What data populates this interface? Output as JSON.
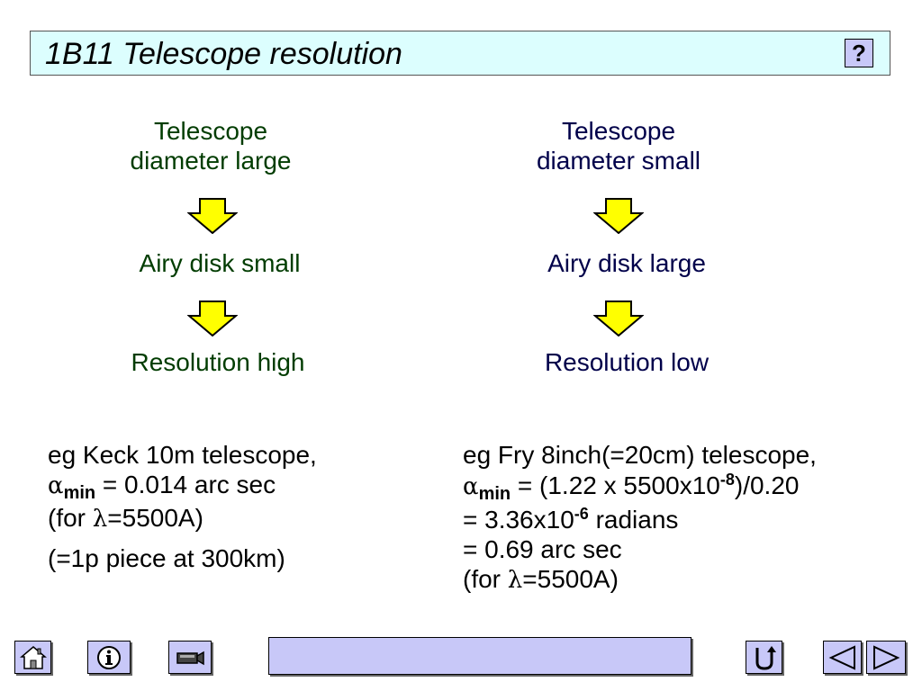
{
  "title": "1B11 Telescope resolution",
  "help_label": "?",
  "left_column": {
    "top": [
      "Telescope",
      "diameter large"
    ],
    "middle": "Airy disk small",
    "bottom": "Resolution high"
  },
  "right_column": {
    "top": [
      "Telescope",
      "diameter small"
    ],
    "middle": "Airy disk large",
    "bottom": "Resolution low"
  },
  "left_example": {
    "line1": "eg Keck 10m telescope,",
    "alpha": "α",
    "sub": "min",
    "line2_rest": " = 0.014 arc sec",
    "line3_a": "(for ",
    "lambda": "λ",
    "line3_b": "=5500A)",
    "line4": "(=1p piece at 300km)"
  },
  "right_example": {
    "line1": "eg Fry 8inch(=20cm) telescope,",
    "alpha": "α",
    "sub": "min",
    "line2_a": " = (1.22 x 5500x10",
    "line2_exp": "-8",
    "line2_b": ")/0.20",
    "line3_a": "= 3.36x10",
    "line3_exp": "-6",
    "line3_b": " radians",
    "line4": "= 0.69 arc sec",
    "line5_a": "(for ",
    "lambda": "λ",
    "line5_b": "=5500A)"
  },
  "nav": {
    "icons": [
      "home-icon",
      "info-icon",
      "video-camera-icon",
      "return-icon",
      "previous-icon",
      "next-icon"
    ]
  },
  "colors": {
    "title_bg": "#dcfefe",
    "button_bg": "#c8c8f8",
    "arrow_fill": "#ffff00",
    "left_text": "#003c00",
    "right_text": "#00004a"
  }
}
